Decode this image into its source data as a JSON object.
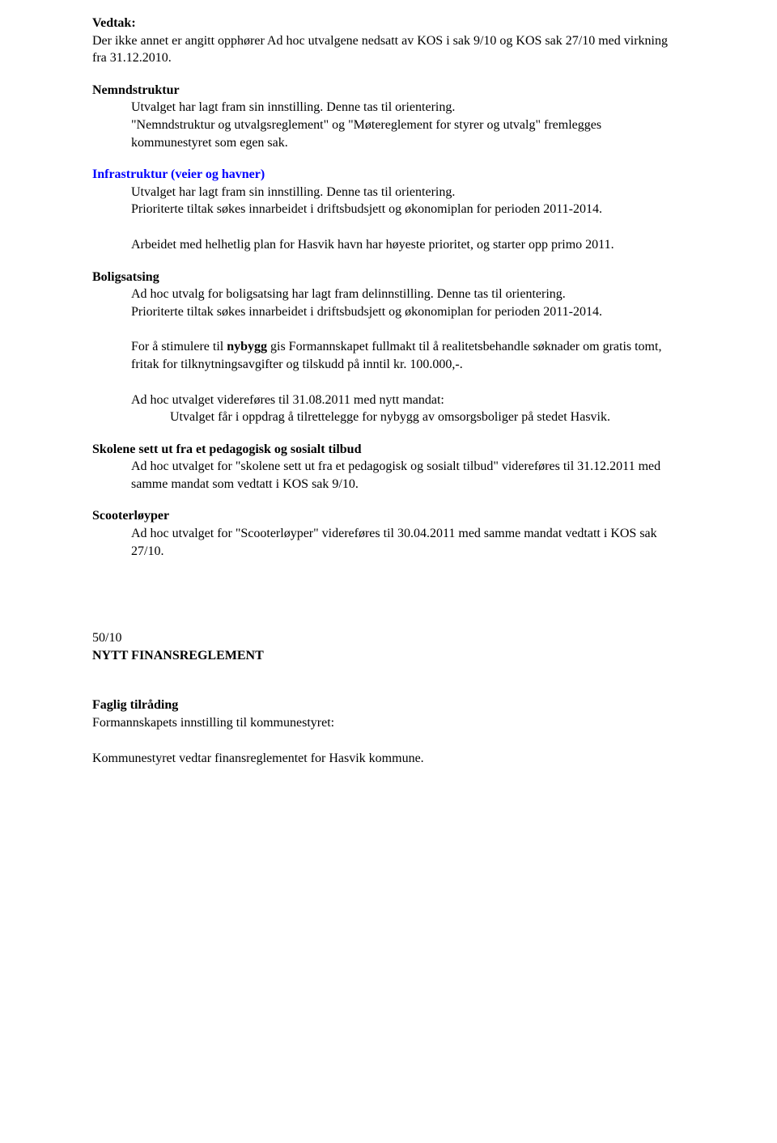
{
  "doc": {
    "text_color": "#000000",
    "link_color": "#0000ff",
    "background": "#ffffff",
    "font_family": "Times New Roman",
    "base_fontsize_pt": 12
  },
  "vedtak": {
    "heading": "Vedtak:",
    "intro": "Der ikke annet er angitt opphører Ad hoc utvalgene nedsatt av KOS i sak 9/10 og KOS sak 27/10 med virkning fra 31.12.2010."
  },
  "nemnd": {
    "title": "Nemndstruktur",
    "line1": "Utvalget har lagt fram sin innstilling. Denne tas til orientering.",
    "line2": "\"Nemndstruktur og utvalgsreglement\" og \"Møtereglement for styrer og utvalg\" fremlegges kommunestyret som egen sak."
  },
  "infra": {
    "title": "Infrastruktur (veier og havner)",
    "line1": "Utvalget har lagt fram sin innstilling. Denne tas til orientering.",
    "line2": "Prioriterte tiltak søkes innarbeidet i driftsbudsjett og økonomiplan for perioden 2011-2014.",
    "line3": "Arbeidet med helhetlig plan for Hasvik havn har høyeste prioritet, og starter opp primo 2011."
  },
  "bolig": {
    "title": "Boligsatsing",
    "line1": "Ad hoc utvalg for boligsatsing har lagt fram delinnstilling. Denne tas til orientering.",
    "line2": "Prioriterte tiltak søkes innarbeidet i driftsbudsjett og økonomiplan for perioden 2011-2014.",
    "p2_pre": "For å stimulere til ",
    "p2_bold": "nybygg",
    "p2_post": " gis Formannskapet fullmakt til å realitetsbehandle søknader om gratis tomt, fritak for tilknytningsavgifter og tilskudd på inntil kr. 100.000,-.",
    "p3": "Ad hoc utvalget videreføres til 31.08.2011 med nytt mandat:",
    "p3_sub": "Utvalget får i oppdrag å tilrettelegge for nybygg av omsorgsboliger på stedet Hasvik."
  },
  "skole": {
    "title": "Skolene sett ut fra et pedagogisk og sosialt tilbud",
    "line1": "Ad hoc utvalget for \"skolene sett ut fra et pedagogisk og sosialt tilbud\" videreføres til 31.12.2011 med samme mandat som vedtatt i KOS sak 9/10."
  },
  "scooter": {
    "title": "Scooterløyper",
    "line1": "Ad hoc utvalget for \"Scooterløyper\" videreføres til 30.04.2011 med samme mandat vedtatt i KOS sak 27/10."
  },
  "item50": {
    "number": "50/10",
    "title": "NYTT FINANSREGLEMENT"
  },
  "faglig": {
    "title": "Faglig tilråding",
    "line1": "Formannskapets innstilling til kommunestyret:",
    "line2": "Kommunestyret vedtar finansreglementet for Hasvik kommune."
  }
}
